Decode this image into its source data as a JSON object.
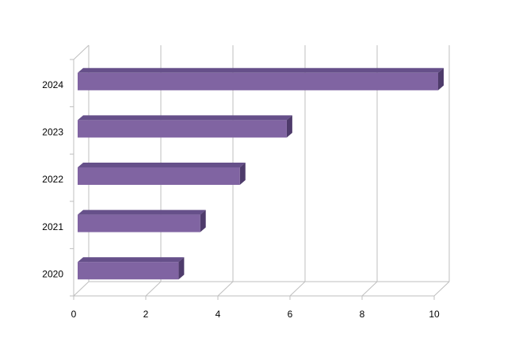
{
  "chart_data": {
    "type": "bar3d_horizontal",
    "categories": [
      "2020",
      "2021",
      "2022",
      "2023",
      "2024"
    ],
    "values": [
      2.8,
      3.4,
      4.5,
      5.8,
      10
    ],
    "color": "#8064a2",
    "xlim": [
      0,
      10
    ],
    "xticks": [
      0,
      2,
      4,
      6,
      8,
      10
    ],
    "grid": true
  }
}
